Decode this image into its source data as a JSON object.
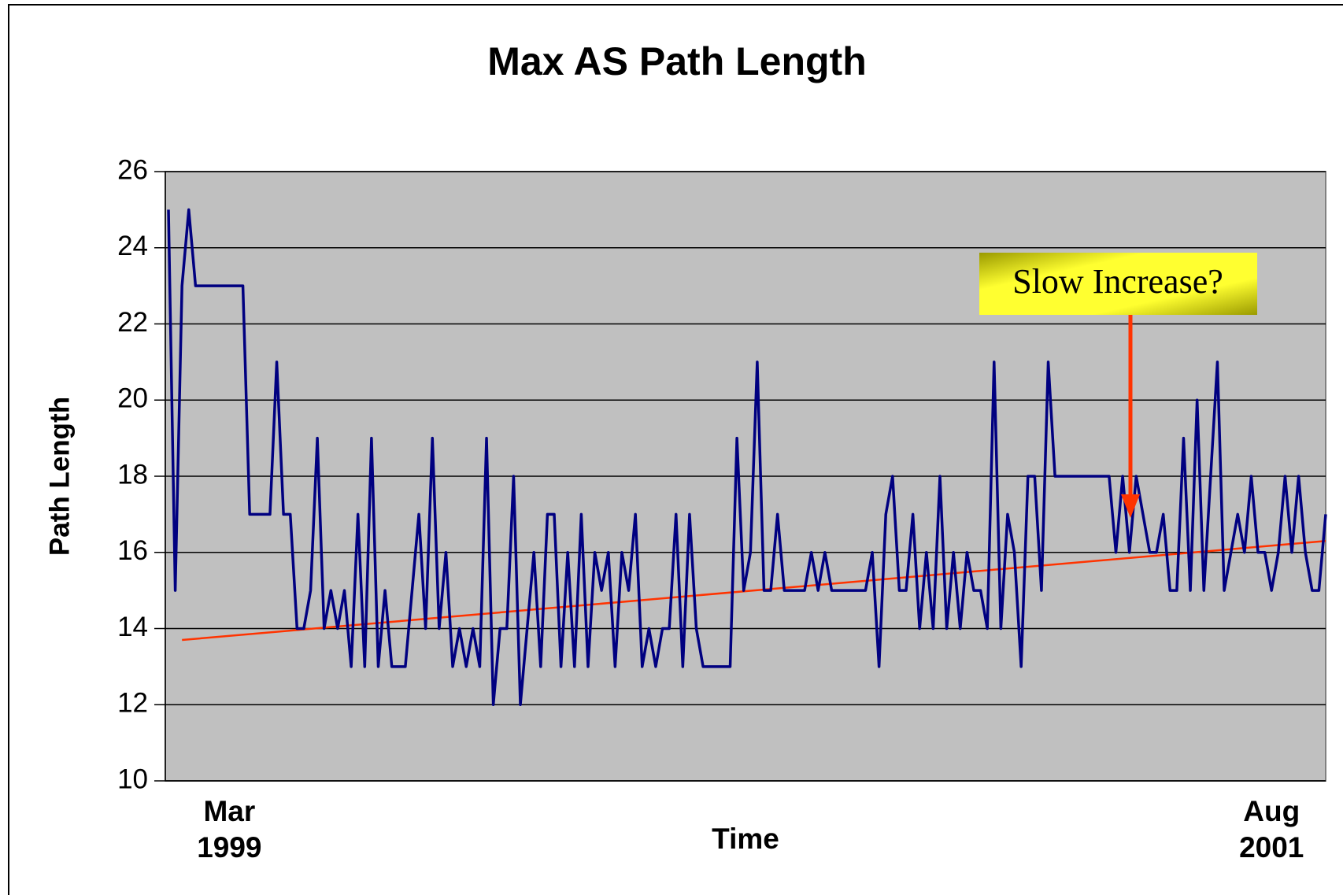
{
  "chart_data": {
    "type": "line",
    "title": "Max AS Path Length",
    "x_label": "Time",
    "y_label": "Path Length",
    "categories": [
      null,
      null,
      null,
      null,
      null,
      null,
      null,
      null,
      null,
      "Mar 1999",
      null,
      null,
      null,
      null,
      null,
      null,
      null,
      null,
      null,
      null,
      null,
      null,
      null,
      null,
      null,
      null,
      null,
      null,
      null,
      null,
      null,
      null,
      null,
      null,
      null,
      null,
      null,
      null,
      null,
      null,
      null,
      null,
      null,
      null,
      null,
      null,
      null,
      null,
      null,
      null,
      null,
      null,
      null,
      null,
      null,
      null,
      null,
      null,
      null,
      null,
      null,
      null,
      null,
      null,
      null,
      null,
      null,
      null,
      null,
      null,
      null,
      null,
      null,
      null,
      null,
      null,
      null,
      null,
      null,
      null,
      null,
      null,
      null,
      null,
      null,
      null,
      null,
      null,
      null,
      null,
      null,
      null,
      null,
      null,
      null,
      null,
      null,
      null,
      null,
      null,
      null,
      null,
      null,
      null,
      null,
      null,
      null,
      null,
      null,
      null,
      null,
      null,
      null,
      null,
      null,
      null,
      null,
      null,
      null,
      null,
      null,
      null,
      null,
      null,
      null,
      null,
      null,
      null,
      null,
      null,
      null,
      null,
      null,
      null,
      null,
      null,
      null,
      null,
      null,
      null,
      null,
      null,
      null,
      null,
      null,
      null,
      null,
      null,
      null,
      null,
      null,
      null,
      null,
      null,
      null,
      null,
      null,
      null,
      null,
      null,
      null,
      null,
      null,
      "Aug 2001",
      null,
      null,
      null,
      null,
      null,
      null,
      null,
      null
    ],
    "series": [
      {
        "name": "Max AS Path Length",
        "color": "#000080",
        "values": [
          25,
          15,
          23,
          25,
          23,
          23,
          23,
          23,
          23,
          23,
          23,
          23,
          17,
          17,
          17,
          17,
          21,
          17,
          17,
          14,
          14,
          15,
          19,
          14,
          15,
          14,
          15,
          13,
          17,
          13,
          19,
          13,
          15,
          13,
          13,
          13,
          15,
          17,
          14,
          19,
          14,
          16,
          13,
          14,
          13,
          14,
          13,
          19,
          12,
          14,
          14,
          18,
          12,
          14,
          16,
          13,
          17,
          17,
          13,
          16,
          13,
          17,
          13,
          16,
          15,
          16,
          13,
          16,
          15,
          17,
          13,
          14,
          13,
          14,
          14,
          17,
          13,
          17,
          14,
          13,
          13,
          13,
          13,
          13,
          19,
          15,
          16,
          21,
          15,
          15,
          17,
          15,
          15,
          15,
          15,
          16,
          15,
          16,
          15,
          15,
          15,
          15,
          15,
          15,
          16,
          13,
          17,
          18,
          15,
          15,
          17,
          14,
          16,
          14,
          18,
          14,
          16,
          14,
          16,
          15,
          15,
          14,
          21,
          14,
          17,
          16,
          13,
          18,
          18,
          15,
          21,
          18,
          18,
          18,
          18,
          18,
          18,
          18,
          18,
          18,
          16,
          18,
          16,
          18,
          17,
          16,
          16,
          17,
          15,
          15,
          19,
          15,
          20,
          15,
          18,
          21,
          15,
          16,
          17,
          16,
          18,
          16,
          16,
          15,
          16,
          18,
          16,
          18,
          16,
          15,
          15,
          17
        ]
      }
    ],
    "trendline": {
      "values": [
        13.7,
        16.3
      ],
      "color": "#ff3300"
    },
    "annotations": [
      {
        "text": "Slow Increase?"
      }
    ],
    "ylim": [
      10,
      26
    ],
    "yticks": [
      10,
      12,
      14,
      16,
      18,
      20,
      22,
      24,
      26
    ],
    "grid": true,
    "plot_background": "#c0c0c0"
  }
}
